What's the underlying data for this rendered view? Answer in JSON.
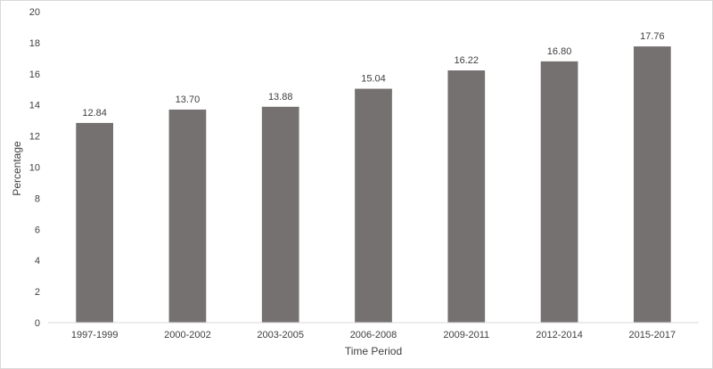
{
  "chart_data": {
    "type": "bar",
    "title": "",
    "xlabel": "Time Period",
    "ylabel": "Percentage",
    "categories": [
      "1997-1999",
      "2000-2002",
      "2003-2005",
      "2006-2008",
      "2009-2011",
      "2012-2014",
      "2015-2017"
    ],
    "values": [
      12.84,
      13.7,
      13.88,
      15.04,
      16.22,
      16.8,
      17.76
    ],
    "value_labels": [
      "12.84",
      "13.70",
      "13.88",
      "15.04",
      "16.22",
      "16.80",
      "17.76"
    ],
    "ylim": [
      0,
      20
    ],
    "yticks": [
      "0",
      "2",
      "4",
      "6",
      "8",
      "10",
      "12",
      "14",
      "16",
      "18",
      "20"
    ],
    "grid": false,
    "legend": "none",
    "bar_color": "#767171"
  }
}
